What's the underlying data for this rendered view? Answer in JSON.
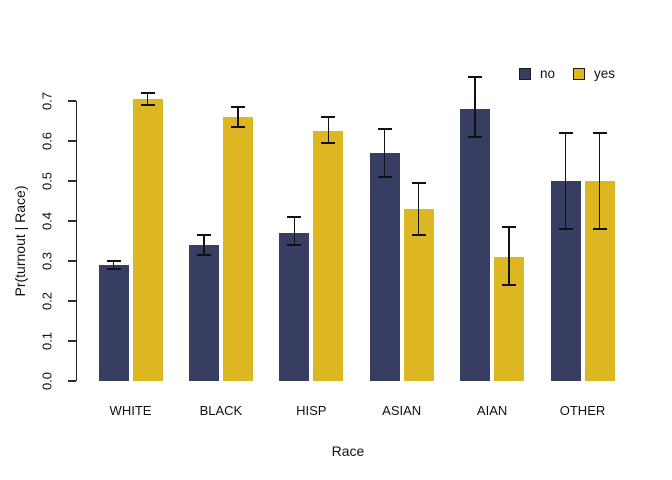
{
  "chart_data": {
    "type": "bar",
    "title": "",
    "xlabel": "Race",
    "ylabel": "Pr(turnout | Race)",
    "categories": [
      "WHITE",
      "BLACK",
      "HISP",
      "ASIAN",
      "AIAN",
      "OTHER"
    ],
    "series": [
      {
        "name": "no",
        "color": "#373e62",
        "values": [
          0.29,
          0.34,
          0.37,
          0.57,
          0.68,
          0.5
        ],
        "ci_low": [
          0.28,
          0.315,
          0.34,
          0.51,
          0.61,
          0.38
        ],
        "ci_high": [
          0.3,
          0.365,
          0.41,
          0.63,
          0.76,
          0.62
        ]
      },
      {
        "name": "yes",
        "color": "#ddb722",
        "values": [
          0.705,
          0.66,
          0.625,
          0.43,
          0.31,
          0.5
        ],
        "ci_low": [
          0.69,
          0.635,
          0.595,
          0.365,
          0.24,
          0.38
        ],
        "ci_high": [
          0.72,
          0.685,
          0.66,
          0.495,
          0.385,
          0.62
        ]
      }
    ],
    "ylim": [
      0.0,
      0.7
    ],
    "yticks": [
      "0.0",
      "0.1",
      "0.2",
      "0.3",
      "0.4",
      "0.5",
      "0.6",
      "0.7"
    ],
    "grid": false,
    "error_bars": true,
    "legend": {
      "position": "top-right",
      "items": [
        {
          "label": "no",
          "color": "#373e62"
        },
        {
          "label": "yes",
          "color": "#ddb722"
        }
      ]
    }
  }
}
